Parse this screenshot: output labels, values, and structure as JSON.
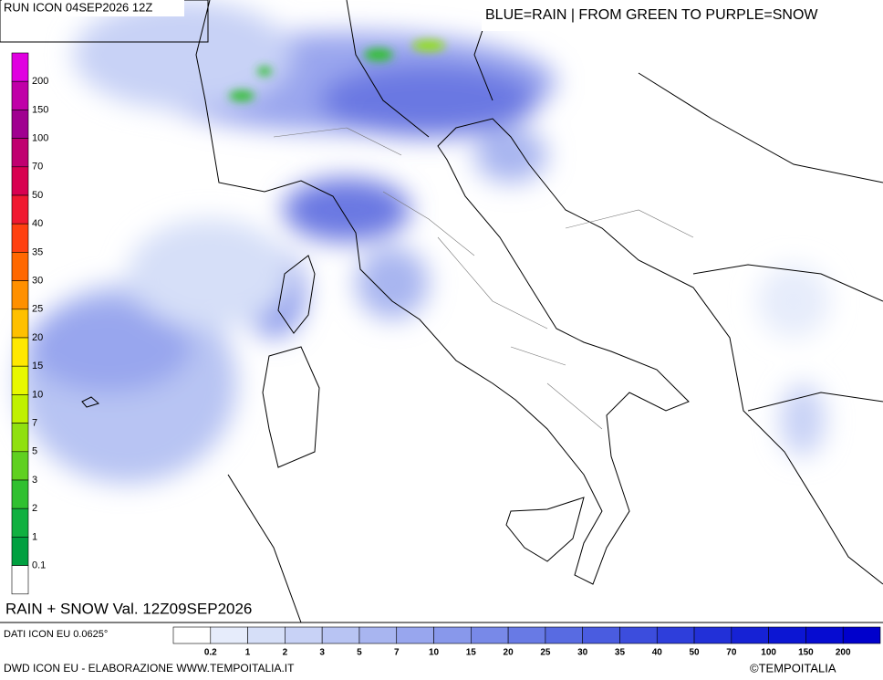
{
  "header": {
    "run": "RUN ICON 04SEP2026 12Z",
    "legend_note": "BLUE=RAIN | FROM GREEN TO PURPLE=SNOW"
  },
  "snow_scale": {
    "labels": [
      "200",
      "150",
      "100",
      "70",
      "50",
      "40",
      "35",
      "30",
      "25",
      "20",
      "15",
      "10",
      "7",
      "5",
      "3",
      "2",
      "1",
      "0.1"
    ],
    "colors": [
      "#e000e0",
      "#c000a8",
      "#a00090",
      "#c00070",
      "#d80050",
      "#f01830",
      "#ff4010",
      "#ff6800",
      "#ff9000",
      "#ffc000",
      "#ffe800",
      "#e8f800",
      "#c0f000",
      "#90e010",
      "#60d020",
      "#30c030",
      "#10b040",
      "#00a040",
      "#ffffff"
    ]
  },
  "rain_scale": {
    "labels": [
      "0.2",
      "1",
      "2",
      "3",
      "5",
      "7",
      "10",
      "15",
      "20",
      "25",
      "30",
      "35",
      "40",
      "50",
      "70",
      "100",
      "150",
      "200"
    ],
    "colors": [
      "#ffffff",
      "#e6ecfb",
      "#d6dff8",
      "#c8d2f6",
      "#b8c4f3",
      "#a8b5f0",
      "#98a6ee",
      "#8898eb",
      "#7889e8",
      "#687ae5",
      "#586be2",
      "#4a5ce0",
      "#3c4ddd",
      "#2e3edb",
      "#2230d8",
      "#1622d5",
      "#0c16d3",
      "#060cd1",
      "#0000cc"
    ]
  },
  "map_label": "RAIN + SNOW Val. 12Z09SEP2026",
  "footer": {
    "source": "DATI ICON EU 0.0625°",
    "credit": "DWD ICON EU - ELABORAZIONE WWW.TEMPOITALIA.IT",
    "copyright": "©TEMPOITALIA"
  }
}
